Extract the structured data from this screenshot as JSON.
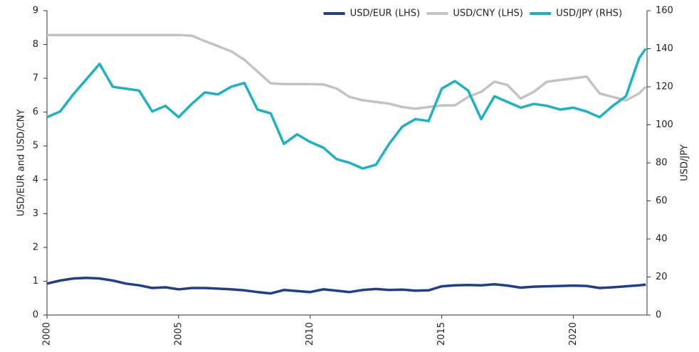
{
  "chart_data": {
    "type": "line",
    "y_label": "USD/EUR and USD/CNY",
    "y2_label": "USD/JPY",
    "x": [
      2000,
      2000.5,
      2001,
      2001.5,
      2002,
      2002.5,
      2003,
      2003.5,
      2004,
      2004.5,
      2005,
      2005.5,
      2006,
      2006.5,
      2007,
      2007.5,
      2008,
      2008.5,
      2009,
      2009.5,
      2010,
      2010.5,
      2011,
      2011.5,
      2012,
      2012.5,
      2013,
      2013.5,
      2014,
      2014.5,
      2015,
      2015.5,
      2016,
      2016.5,
      2017,
      2017.5,
      2018,
      2018.5,
      2019,
      2019.5,
      2020,
      2020.5,
      2021,
      2021.5,
      2022,
      2022.5,
      2022.75
    ],
    "xlim": [
      2000,
      2022.8
    ],
    "xticks": [
      2000,
      2005,
      2010,
      2015,
      2020
    ],
    "ylim": [
      0,
      9
    ],
    "yticks": [
      0,
      1,
      2,
      3,
      4,
      5,
      6,
      7,
      8,
      9
    ],
    "y2lim": [
      0,
      160
    ],
    "y2ticks": [
      0,
      20,
      40,
      60,
      80,
      100,
      120,
      140,
      160
    ],
    "legend": "top-right",
    "series": [
      {
        "name": "USD/EUR (LHS)",
        "color": "#1f3f8a",
        "values": [
          0.93,
          1.02,
          1.08,
          1.1,
          1.08,
          1.02,
          0.93,
          0.88,
          0.8,
          0.82,
          0.76,
          0.8,
          0.8,
          0.78,
          0.76,
          0.73,
          0.68,
          0.64,
          0.74,
          0.71,
          0.68,
          0.76,
          0.72,
          0.68,
          0.74,
          0.77,
          0.74,
          0.75,
          0.72,
          0.73,
          0.85,
          0.88,
          0.89,
          0.88,
          0.91,
          0.87,
          0.81,
          0.84,
          0.85,
          0.86,
          0.87,
          0.86,
          0.8,
          0.82,
          0.85,
          0.88,
          0.9
        ]
      },
      {
        "name": "USD/CNY (LHS)",
        "color": "#c3c3c3",
        "values": [
          8.28,
          8.28,
          8.28,
          8.28,
          8.28,
          8.28,
          8.28,
          8.28,
          8.28,
          8.28,
          8.28,
          8.26,
          8.1,
          7.95,
          7.8,
          7.55,
          7.2,
          6.85,
          6.83,
          6.83,
          6.83,
          6.82,
          6.7,
          6.45,
          6.35,
          6.3,
          6.25,
          6.15,
          6.1,
          6.15,
          6.2,
          6.2,
          6.45,
          6.6,
          6.9,
          6.8,
          6.4,
          6.6,
          6.9,
          6.95,
          7.0,
          7.05,
          6.55,
          6.45,
          6.35,
          6.55,
          6.75
        ]
      },
      {
        "name": "USD/JPY (RHS)",
        "color": "#1bb3c1",
        "axis": "y2",
        "values": [
          104,
          107,
          116,
          124,
          132,
          120,
          119,
          118,
          107,
          110,
          104,
          111,
          117,
          116,
          120,
          122,
          108,
          106,
          90,
          95,
          91,
          88,
          82,
          80,
          77,
          79,
          90,
          99,
          103,
          102,
          119,
          123,
          118,
          103,
          115,
          112,
          109,
          111,
          110,
          108,
          109,
          107,
          104,
          110,
          115,
          135,
          140
        ]
      }
    ]
  }
}
